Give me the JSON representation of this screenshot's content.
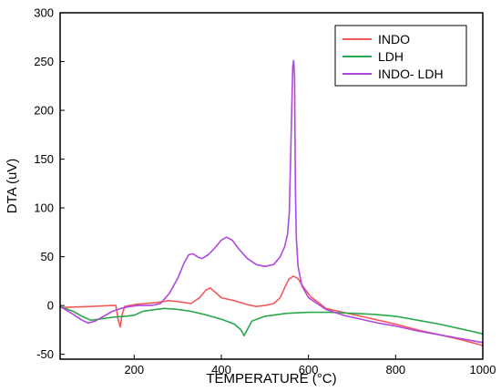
{
  "chart_data": {
    "type": "line",
    "title": "",
    "xlabel": "TEMPERATURE (°C)",
    "ylabel": "DTA (uV)",
    "xlim": [
      30,
      1000
    ],
    "ylim": [
      -55,
      300
    ],
    "x_ticks": [
      "200",
      "400",
      "600",
      "800",
      "1000"
    ],
    "x_tick_values": [
      200,
      400,
      600,
      800,
      1000
    ],
    "y_ticks": [
      "-50",
      "0",
      "50",
      "100",
      "150",
      "200",
      "250",
      "300"
    ],
    "y_tick_values": [
      -50,
      0,
      50,
      100,
      150,
      200,
      250,
      300
    ],
    "grid": false,
    "legend_position": "top-right",
    "series": [
      {
        "name": "INDO",
        "color": "#f05a5a",
        "points": [
          [
            30,
            -2
          ],
          [
            100,
            -1
          ],
          [
            150,
            0
          ],
          [
            158,
            0
          ],
          [
            163,
            -14
          ],
          [
            168,
            -22
          ],
          [
            172,
            -10
          ],
          [
            178,
            -1
          ],
          [
            200,
            1
          ],
          [
            250,
            3
          ],
          [
            280,
            5
          ],
          [
            300,
            4
          ],
          [
            330,
            2
          ],
          [
            350,
            8
          ],
          [
            365,
            16
          ],
          [
            375,
            18
          ],
          [
            385,
            14
          ],
          [
            400,
            8
          ],
          [
            430,
            5
          ],
          [
            460,
            1
          ],
          [
            480,
            -1
          ],
          [
            500,
            0
          ],
          [
            520,
            2
          ],
          [
            535,
            8
          ],
          [
            545,
            18
          ],
          [
            555,
            27
          ],
          [
            565,
            30
          ],
          [
            575,
            28
          ],
          [
            590,
            18
          ],
          [
            605,
            9
          ],
          [
            620,
            4
          ],
          [
            640,
            -3
          ],
          [
            680,
            -7
          ],
          [
            720,
            -11
          ],
          [
            760,
            -15
          ],
          [
            800,
            -19
          ],
          [
            850,
            -25
          ],
          [
            900,
            -30
          ],
          [
            950,
            -35
          ],
          [
            1000,
            -41
          ]
        ]
      },
      {
        "name": "LDH",
        "color": "#2aa84a",
        "points": [
          [
            30,
            -1
          ],
          [
            60,
            -6
          ],
          [
            80,
            -11
          ],
          [
            100,
            -15
          ],
          [
            120,
            -14
          ],
          [
            150,
            -12
          ],
          [
            180,
            -11
          ],
          [
            200,
            -10
          ],
          [
            220,
            -6
          ],
          [
            250,
            -4
          ],
          [
            270,
            -3
          ],
          [
            300,
            -4
          ],
          [
            330,
            -6
          ],
          [
            360,
            -9
          ],
          [
            400,
            -14
          ],
          [
            430,
            -19
          ],
          [
            445,
            -25
          ],
          [
            452,
            -31
          ],
          [
            458,
            -26
          ],
          [
            470,
            -16
          ],
          [
            500,
            -11
          ],
          [
            550,
            -8
          ],
          [
            600,
            -7
          ],
          [
            650,
            -7
          ],
          [
            700,
            -8
          ],
          [
            750,
            -9
          ],
          [
            800,
            -11
          ],
          [
            850,
            -15
          ],
          [
            900,
            -19
          ],
          [
            950,
            -24
          ],
          [
            1000,
            -29
          ]
        ]
      },
      {
        "name": "INDO- LDH",
        "color": "#b048e0",
        "points": [
          [
            30,
            -1
          ],
          [
            60,
            -9
          ],
          [
            80,
            -15
          ],
          [
            95,
            -18
          ],
          [
            110,
            -16
          ],
          [
            130,
            -11
          ],
          [
            150,
            -6
          ],
          [
            170,
            -3
          ],
          [
            190,
            -1
          ],
          [
            210,
            0
          ],
          [
            240,
            0
          ],
          [
            260,
            2
          ],
          [
            280,
            12
          ],
          [
            300,
            28
          ],
          [
            315,
            44
          ],
          [
            325,
            52
          ],
          [
            335,
            53
          ],
          [
            345,
            50
          ],
          [
            355,
            48
          ],
          [
            370,
            52
          ],
          [
            385,
            59
          ],
          [
            400,
            67
          ],
          [
            412,
            70
          ],
          [
            425,
            67
          ],
          [
            440,
            58
          ],
          [
            460,
            48
          ],
          [
            480,
            42
          ],
          [
            500,
            40
          ],
          [
            520,
            42
          ],
          [
            535,
            50
          ],
          [
            545,
            60
          ],
          [
            552,
            73
          ],
          [
            556,
            95
          ],
          [
            559,
            150
          ],
          [
            562,
            210
          ],
          [
            564,
            245
          ],
          [
            566,
            251
          ],
          [
            568,
            235
          ],
          [
            569,
            180
          ],
          [
            570,
            120
          ],
          [
            572,
            70
          ],
          [
            576,
            40
          ],
          [
            585,
            20
          ],
          [
            600,
            8
          ],
          [
            620,
            2
          ],
          [
            640,
            -4
          ],
          [
            680,
            -10
          ],
          [
            720,
            -14
          ],
          [
            760,
            -18
          ],
          [
            800,
            -21
          ],
          [
            850,
            -26
          ],
          [
            900,
            -30
          ],
          [
            950,
            -34
          ],
          [
            1000,
            -38
          ]
        ]
      }
    ]
  }
}
